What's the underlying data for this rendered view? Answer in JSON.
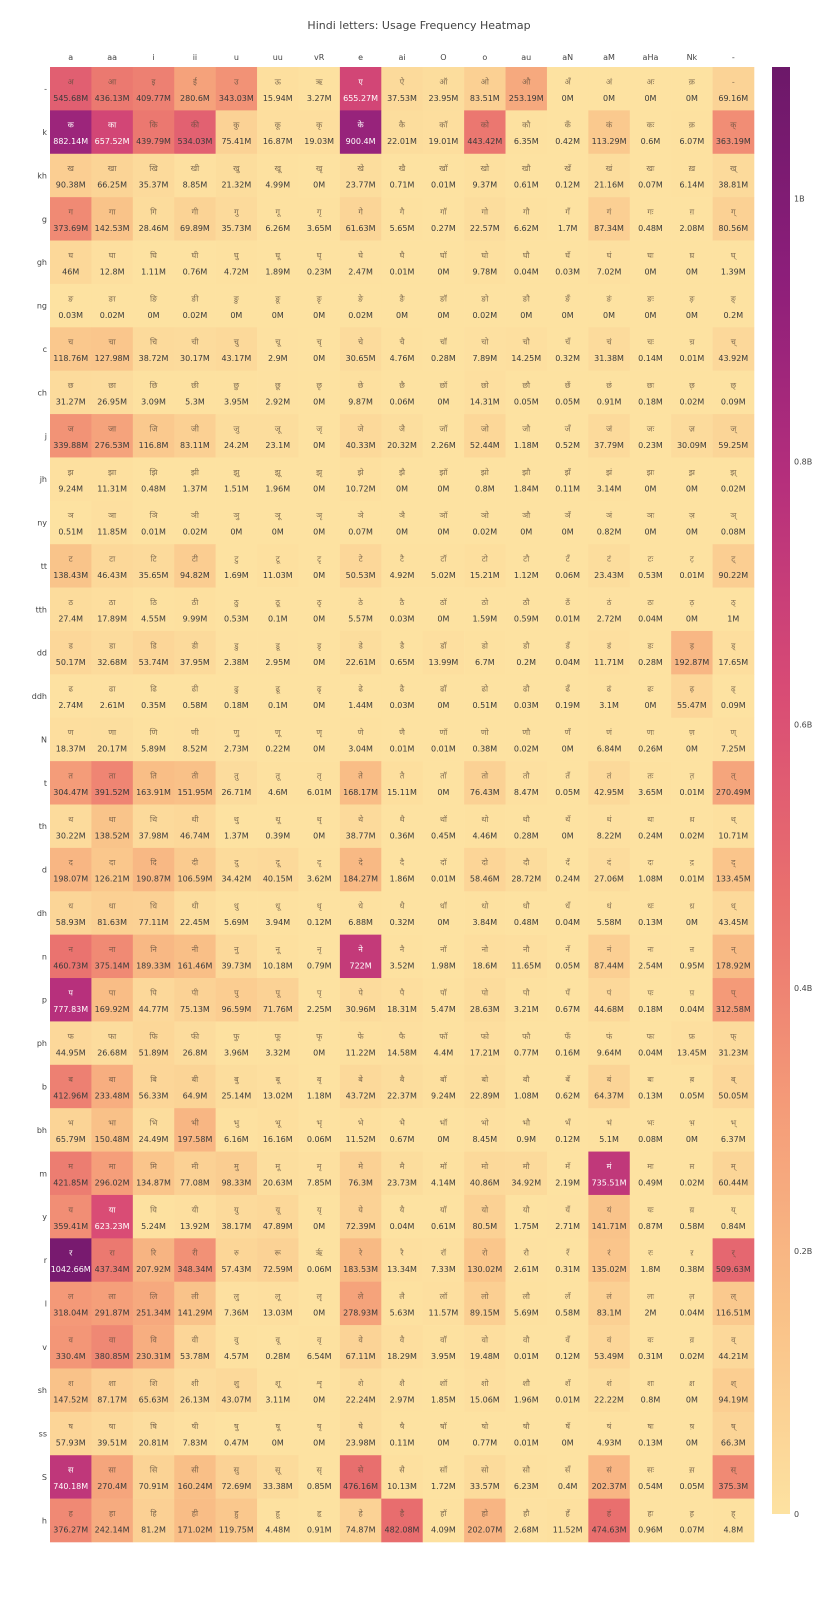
{
  "chart_data": {
    "type": "heatmap",
    "title": "Hindi letters: Usage Frequency Heatmap",
    "xlabel": "",
    "ylabel": "",
    "x_categories": [
      "a",
      "aa",
      "i",
      "ii",
      "u",
      "uu",
      "vR",
      "e",
      "ai",
      "O",
      "o",
      "au",
      "aN",
      "aM",
      "aHa",
      "Nk",
      "-"
    ],
    "y_categories": [
      "-",
      "k",
      "kh",
      "g",
      "gh",
      "ng",
      "c",
      "ch",
      "j",
      "jh",
      "ny",
      "tt",
      "tth",
      "dd",
      "ddh",
      "N",
      "t",
      "th",
      "d",
      "dh",
      "n",
      "p",
      "ph",
      "b",
      "bh",
      "m",
      "y",
      "r",
      "l",
      "v",
      "sh",
      "ss",
      "S",
      "h"
    ],
    "consonant_glyphs": [
      "",
      "क",
      "ख",
      "ग",
      "घ",
      "ङ",
      "च",
      "छ",
      "ज",
      "झ",
      "ञ",
      "ट",
      "ठ",
      "ड",
      "ढ",
      "ण",
      "त",
      "थ",
      "द",
      "ध",
      "न",
      "प",
      "फ",
      "ब",
      "भ",
      "म",
      "य",
      "र",
      "ल",
      "व",
      "श",
      "ष",
      "स",
      "ह"
    ],
    "vowel_signs": [
      "",
      "ा",
      "ि",
      "ी",
      "ु",
      "ू",
      "ृ",
      "े",
      "ै",
      "ॉ",
      "ो",
      "ौ",
      "ँ",
      "ं",
      "ः",
      "़",
      "्"
    ],
    "independent_vowels": [
      "अ",
      "आ",
      "इ",
      "ई",
      "उ",
      "ऊ",
      "ऋ",
      "ए",
      "ऐ",
      "ऑ",
      "ओ",
      "औ",
      "अँ",
      "अं",
      "अः",
      "क़",
      "-"
    ],
    "values": [
      [
        545.68,
        436.13,
        409.77,
        280.6,
        343.03,
        15.94,
        3.27,
        655.27,
        37.53,
        23.95,
        83.51,
        253.19,
        0.0,
        0.0,
        0.0,
        0.0,
        69.16
      ],
      [
        882.14,
        657.52,
        439.79,
        534.03,
        75.41,
        16.87,
        19.03,
        900.4,
        22.01,
        19.01,
        443.42,
        6.35,
        0.42,
        113.29,
        0.6,
        6.07,
        363.19
      ],
      [
        90.38,
        66.25,
        35.37,
        8.85,
        21.32,
        4.99,
        0.0,
        23.77,
        0.71,
        0.01,
        9.37,
        0.61,
        0.12,
        21.16,
        0.07,
        6.14,
        38.81
      ],
      [
        373.69,
        142.53,
        28.46,
        69.89,
        35.73,
        6.26,
        3.65,
        61.63,
        5.65,
        0.27,
        22.57,
        6.62,
        1.7,
        87.34,
        0.48,
        2.08,
        80.56
      ],
      [
        46.0,
        12.8,
        1.11,
        0.76,
        4.72,
        1.89,
        0.23,
        2.47,
        0.01,
        0.0,
        9.78,
        0.04,
        0.03,
        7.02,
        0.0,
        0.0,
        1.39
      ],
      [
        0.03,
        0.02,
        0.0,
        0.02,
        0.0,
        0.0,
        0.0,
        0.02,
        0.0,
        0.0,
        0.02,
        0.0,
        0.0,
        0.0,
        0.0,
        0.0,
        0.2
      ],
      [
        118.76,
        127.98,
        38.72,
        30.17,
        43.17,
        2.9,
        0.0,
        30.65,
        4.76,
        0.28,
        7.89,
        14.25,
        0.32,
        31.38,
        0.14,
        0.01,
        43.92
      ],
      [
        31.27,
        26.95,
        3.09,
        5.3,
        3.95,
        2.92,
        0.0,
        9.87,
        0.06,
        0.0,
        14.31,
        0.05,
        0.05,
        0.91,
        0.18,
        0.02,
        0.09
      ],
      [
        339.88,
        276.53,
        116.8,
        83.11,
        24.2,
        23.1,
        0.0,
        40.33,
        20.32,
        2.26,
        52.44,
        1.18,
        0.52,
        37.79,
        0.23,
        30.09,
        59.25
      ],
      [
        9.24,
        11.31,
        0.48,
        1.37,
        1.51,
        1.96,
        0.0,
        10.72,
        0.0,
        0.0,
        0.8,
        1.84,
        0.11,
        3.14,
        0.0,
        0.0,
        0.02
      ],
      [
        0.51,
        11.85,
        0.01,
        0.02,
        0.0,
        0.0,
        0.0,
        0.07,
        0.0,
        0.0,
        0.02,
        0.0,
        0.0,
        0.82,
        0.0,
        0.0,
        0.08
      ],
      [
        138.43,
        46.43,
        35.65,
        94.82,
        1.69,
        11.03,
        0.0,
        50.53,
        4.92,
        5.02,
        15.21,
        1.12,
        0.06,
        23.43,
        0.53,
        0.01,
        90.22
      ],
      [
        27.4,
        17.89,
        4.55,
        9.99,
        0.53,
        0.1,
        0.0,
        5.57,
        0.03,
        0.0,
        1.59,
        0.59,
        0.01,
        2.72,
        0.04,
        0.0,
        1.0
      ],
      [
        50.17,
        32.68,
        53.74,
        37.95,
        2.38,
        2.95,
        0.0,
        22.61,
        0.65,
        13.99,
        6.7,
        0.2,
        0.04,
        11.71,
        0.28,
        192.87,
        17.65
      ],
      [
        2.74,
        2.61,
        0.35,
        0.58,
        0.18,
        0.1,
        0.0,
        1.44,
        0.03,
        0.0,
        0.51,
        0.03,
        0.19,
        3.1,
        0.0,
        55.47,
        0.09
      ],
      [
        18.37,
        20.17,
        5.89,
        8.52,
        2.73,
        0.22,
        0.0,
        3.04,
        0.01,
        0.01,
        0.38,
        0.02,
        0.0,
        6.84,
        0.26,
        0.0,
        7.25
      ],
      [
        304.47,
        391.52,
        163.91,
        151.95,
        26.71,
        4.6,
        6.01,
        168.17,
        15.11,
        0.0,
        76.43,
        8.47,
        0.05,
        42.95,
        3.65,
        0.01,
        270.49
      ],
      [
        30.22,
        138.52,
        37.98,
        46.74,
        1.37,
        0.39,
        0.0,
        38.77,
        0.36,
        0.45,
        4.46,
        0.28,
        0.0,
        8.22,
        0.24,
        0.02,
        10.71
      ],
      [
        198.07,
        126.21,
        190.87,
        106.59,
        34.42,
        40.15,
        3.62,
        184.27,
        1.86,
        0.01,
        58.46,
        28.72,
        0.24,
        27.06,
        1.08,
        0.01,
        133.45
      ],
      [
        58.93,
        81.63,
        77.11,
        22.45,
        5.69,
        3.94,
        0.12,
        6.88,
        0.32,
        0.0,
        3.84,
        0.48,
        0.04,
        5.58,
        0.13,
        0.0,
        43.45
      ],
      [
        460.73,
        375.14,
        189.33,
        161.46,
        39.73,
        10.18,
        0.79,
        722.0,
        3.52,
        1.98,
        18.6,
        11.65,
        0.05,
        87.44,
        2.54,
        0.95,
        178.92
      ],
      [
        777.83,
        169.92,
        44.77,
        75.13,
        96.59,
        71.76,
        2.25,
        30.96,
        18.31,
        5.47,
        28.63,
        3.21,
        0.67,
        44.68,
        0.18,
        0.04,
        312.58
      ],
      [
        44.95,
        26.68,
        51.89,
        26.8,
        3.96,
        3.32,
        0.0,
        11.22,
        14.58,
        4.4,
        17.21,
        0.77,
        0.16,
        9.64,
        0.04,
        13.45,
        31.23
      ],
      [
        412.96,
        233.48,
        56.33,
        64.9,
        25.14,
        13.02,
        1.18,
        43.72,
        22.37,
        9.24,
        22.89,
        1.08,
        0.62,
        64.37,
        0.13,
        0.05,
        50.05
      ],
      [
        65.79,
        150.48,
        24.49,
        197.58,
        6.16,
        16.16,
        0.06,
        11.52,
        0.67,
        0.0,
        8.45,
        0.9,
        0.12,
        5.1,
        0.08,
        0.0,
        6.37
      ],
      [
        421.85,
        296.02,
        134.87,
        77.08,
        98.33,
        20.63,
        7.85,
        76.3,
        23.73,
        4.14,
        40.86,
        34.92,
        2.19,
        735.51,
        0.49,
        0.02,
        60.44
      ],
      [
        359.41,
        623.23,
        5.24,
        13.92,
        38.17,
        47.89,
        0.0,
        72.39,
        0.04,
        0.61,
        80.5,
        1.75,
        2.71,
        141.71,
        0.87,
        0.58,
        0.84
      ],
      [
        1042.66,
        437.34,
        207.92,
        348.34,
        57.43,
        72.59,
        0.06,
        183.53,
        13.34,
        7.33,
        130.02,
        2.61,
        0.31,
        135.02,
        1.8,
        0.38,
        509.63
      ],
      [
        318.04,
        291.87,
        251.34,
        141.29,
        7.36,
        13.03,
        0.0,
        278.93,
        5.63,
        11.57,
        89.15,
        5.69,
        0.58,
        83.1,
        2.0,
        0.04,
        116.51
      ],
      [
        330.4,
        380.85,
        230.31,
        53.78,
        4.57,
        0.28,
        6.54,
        67.11,
        18.29,
        3.95,
        19.48,
        0.01,
        0.12,
        53.49,
        0.31,
        0.02,
        44.21
      ],
      [
        147.52,
        87.17,
        65.63,
        26.13,
        43.07,
        3.11,
        0.0,
        22.24,
        2.97,
        1.85,
        15.06,
        1.96,
        0.01,
        22.22,
        0.8,
        0.0,
        94.19
      ],
      [
        57.93,
        39.51,
        20.81,
        7.83,
        0.47,
        0.0,
        0.0,
        23.98,
        0.11,
        0.0,
        0.77,
        0.01,
        0.0,
        4.93,
        0.13,
        0.0,
        66.3
      ],
      [
        740.18,
        270.4,
        70.91,
        160.24,
        72.69,
        33.38,
        0.85,
        476.16,
        10.13,
        1.72,
        33.57,
        6.23,
        0.4,
        202.37,
        0.54,
        0.05,
        375.3
      ],
      [
        376.27,
        242.14,
        81.2,
        171.02,
        119.75,
        4.48,
        0.91,
        74.87,
        482.08,
        4.09,
        202.07,
        2.68,
        11.52,
        474.63,
        0.96,
        0.07,
        4.8
      ]
    ],
    "value_unit": "M",
    "colorscale": [
      "#fde2a1",
      "#f9c087",
      "#f49a78",
      "#e9706e",
      "#d84b75",
      "#b52f7c",
      "#8c1e7a",
      "#6c1869"
    ],
    "zmin": 0,
    "zmax": 1100,
    "colorbar_ticks": [
      {
        "value": 0,
        "label": "0"
      },
      {
        "value": 200,
        "label": "0.2B"
      },
      {
        "value": 400,
        "label": "0.4B"
      },
      {
        "value": 600,
        "label": "0.6B"
      },
      {
        "value": 800,
        "label": "0.8B"
      },
      {
        "value": 1000,
        "label": "1B"
      }
    ]
  }
}
